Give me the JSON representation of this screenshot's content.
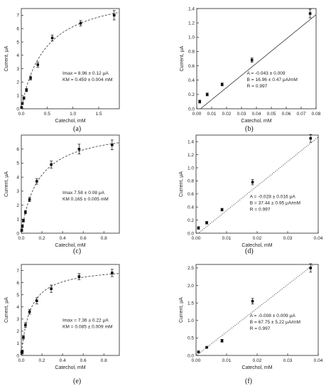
{
  "chart_data": [
    {
      "type": "scatter",
      "panel": "(a)",
      "xlabel": "Catechol, mM",
      "ylabel": "Current, μA",
      "xlim": [
        0,
        1.9
      ],
      "ylim": [
        0,
        7.5
      ],
      "xticks": [
        0,
        0.5,
        1.0,
        1.5
      ],
      "xtick_labels": [
        "0.0",
        "0.5",
        "1.0",
        "1.5"
      ],
      "yticks": [
        0,
        1,
        2,
        3,
        4,
        5,
        6,
        7
      ],
      "fit": {
        "kind": "michaelis-menten",
        "style": "dashed",
        "imax": 8.96,
        "km": 0.459
      },
      "annotation": [
        "Imax = 8.96 ± 0.12 μA",
        "KM = 0.459 ± 0.004 mM"
      ],
      "points": [
        {
          "x": 0.005,
          "y": 0.1,
          "err": 0.05
        },
        {
          "x": 0.02,
          "y": 0.4,
          "err": 0.08
        },
        {
          "x": 0.05,
          "y": 0.8,
          "err": 0.1
        },
        {
          "x": 0.1,
          "y": 1.4,
          "err": 0.12
        },
        {
          "x": 0.18,
          "y": 2.3,
          "err": 0.15
        },
        {
          "x": 0.32,
          "y": 3.3,
          "err": 0.2
        },
        {
          "x": 0.6,
          "y": 5.3,
          "err": 0.22
        },
        {
          "x": 1.15,
          "y": 6.4,
          "err": 0.2
        },
        {
          "x": 1.8,
          "y": 7.0,
          "err": 0.35
        }
      ]
    },
    {
      "type": "scatter",
      "panel": "(b)",
      "xlabel": "Catechol, mM",
      "ylabel": "Current, μA",
      "xlim": [
        0,
        0.08
      ],
      "ylim": [
        0,
        1.4
      ],
      "xticks": [
        0,
        0.01,
        0.02,
        0.03,
        0.04,
        0.05,
        0.06,
        0.07,
        0.08
      ],
      "xtick_labels": [
        "0.00",
        "0.01",
        "0.02",
        "0.03",
        "0.04",
        "0.05",
        "0.06",
        "0.07",
        "0.08"
      ],
      "yticks": [
        0,
        0.2,
        0.4,
        0.6,
        0.8,
        1.0,
        1.2,
        1.4
      ],
      "ytick_labels": [
        "0.0",
        "0.2",
        "0.4",
        "0.6",
        "0.8",
        "1.0",
        "1.2",
        "1.4"
      ],
      "fit": {
        "kind": "linear",
        "style": "solid",
        "intercept": -0.043,
        "slope": 16.96
      },
      "annotation": [
        "A = -0.043 ± 0.009",
        "B = 16.96 ± 0.47 μA/mM",
        "R = 0.997"
      ],
      "points": [
        {
          "x": 0.002,
          "y": 0.1,
          "err": 0.02
        },
        {
          "x": 0.007,
          "y": 0.2,
          "err": 0.02
        },
        {
          "x": 0.017,
          "y": 0.34,
          "err": 0.02
        },
        {
          "x": 0.037,
          "y": 0.68,
          "err": 0.03
        },
        {
          "x": 0.076,
          "y": 1.33,
          "err": 0.06
        }
      ]
    },
    {
      "type": "scatter",
      "panel": "(c)",
      "xlabel": "Catechol, mM",
      "ylabel": "Current, μA",
      "xlim": [
        0,
        0.95
      ],
      "ylim": [
        0,
        7
      ],
      "xticks": [
        0,
        0.2,
        0.4,
        0.6,
        0.8
      ],
      "xtick_labels": [
        "0.0",
        "0.2",
        "0.4",
        "0.6",
        "0.8"
      ],
      "yticks": [
        0,
        1,
        2,
        3,
        4,
        5,
        6
      ],
      "fit": {
        "kind": "michaelis-menten",
        "style": "dashed",
        "imax": 7.58,
        "km": 0.165
      },
      "annotation": [
        "Imax 7.58 ± 0.08 μA",
        "KM 0.165 ± 0.005 mM"
      ],
      "points": [
        {
          "x": 0.004,
          "y": 0.2,
          "err": 0.08
        },
        {
          "x": 0.01,
          "y": 0.5,
          "err": 0.1
        },
        {
          "x": 0.02,
          "y": 0.9,
          "err": 0.1
        },
        {
          "x": 0.04,
          "y": 1.5,
          "err": 0.12
        },
        {
          "x": 0.08,
          "y": 2.4,
          "err": 0.15
        },
        {
          "x": 0.15,
          "y": 3.7,
          "err": 0.2
        },
        {
          "x": 0.29,
          "y": 4.9,
          "err": 0.25
        },
        {
          "x": 0.56,
          "y": 6.0,
          "err": 0.35
        },
        {
          "x": 0.88,
          "y": 6.3,
          "err": 0.35
        }
      ]
    },
    {
      "type": "scatter",
      "panel": "(d)",
      "xlabel": "Catechol, mM",
      "ylabel": "Current, μA",
      "xlim": [
        0,
        0.04
      ],
      "ylim": [
        0,
        1.5
      ],
      "xticks": [
        0,
        0.01,
        0.02,
        0.03,
        0.04
      ],
      "xtick_labels": [
        "0.00",
        "0.01",
        "0.02",
        "0.03",
        "0.04"
      ],
      "yticks": [
        0,
        0.2,
        0.4,
        0.6,
        0.8,
        1.0,
        1.2,
        1.4
      ],
      "ytick_labels": [
        "0.0",
        "0.2",
        "0.4",
        "0.6",
        "0.8",
        "1.0",
        "1.2",
        "1.4"
      ],
      "fit": {
        "kind": "linear",
        "style": "dotted",
        "intercept": -0.028,
        "slope": 37.44
      },
      "annotation": [
        "A = -0.028 ± 0.016  μA",
        "B = 37.44 ± 0.95 μA/mM",
        "R = 0.997"
      ],
      "points": [
        {
          "x": 0.0008,
          "y": 0.08,
          "err": 0.02
        },
        {
          "x": 0.0035,
          "y": 0.16,
          "err": 0.02
        },
        {
          "x": 0.0085,
          "y": 0.36,
          "err": 0.02
        },
        {
          "x": 0.0185,
          "y": 0.78,
          "err": 0.04
        },
        {
          "x": 0.0375,
          "y": 1.45,
          "err": 0.06
        }
      ]
    },
    {
      "type": "scatter",
      "panel": "(e)",
      "xlabel": "Catechol, mM",
      "ylabel": "Current, μA",
      "xlim": [
        0,
        0.95
      ],
      "ylim": [
        0,
        7.5
      ],
      "xticks": [
        0,
        0.2,
        0.4,
        0.6,
        0.8
      ],
      "xtick_labels": [
        "0.0",
        "0.2",
        "0.4",
        "0.6",
        "0.8"
      ],
      "yticks": [
        0,
        1,
        2,
        3,
        4,
        5,
        6,
        7
      ],
      "fit": {
        "kind": "michaelis-menten",
        "style": "dashed",
        "imax": 7.36,
        "km": 0.085
      },
      "annotation": [
        "Imax = 7.36 ± 0.22 μA",
        "KM = 0.085 ± 0.009 mM"
      ],
      "points": [
        {
          "x": 0.004,
          "y": 0.25,
          "err": 0.15
        },
        {
          "x": 0.01,
          "y": 0.3,
          "err": 0.15
        },
        {
          "x": 0.02,
          "y": 1.5,
          "err": 0.15
        },
        {
          "x": 0.04,
          "y": 2.5,
          "err": 0.2
        },
        {
          "x": 0.08,
          "y": 3.6,
          "err": 0.2
        },
        {
          "x": 0.15,
          "y": 4.5,
          "err": 0.25
        },
        {
          "x": 0.29,
          "y": 5.5,
          "err": 0.3
        },
        {
          "x": 0.56,
          "y": 6.5,
          "err": 0.25
        },
        {
          "x": 0.88,
          "y": 6.8,
          "err": 0.3
        }
      ]
    },
    {
      "type": "scatter",
      "panel": "(f)",
      "xlabel": "Catechol, mM",
      "ylabel": "Current, μA",
      "xlim": [
        0,
        0.04
      ],
      "ylim": [
        0,
        2.6
      ],
      "xticks": [
        0,
        0.01,
        0.02,
        0.03,
        0.04
      ],
      "xtick_labels": [
        "0.00",
        "0.01",
        "0.02",
        "0.03",
        "0.04"
      ],
      "yticks": [
        0,
        0.5,
        1.0,
        1.5,
        2.0,
        2.5
      ],
      "ytick_labels": [
        "0.0",
        "0.5",
        "1.0",
        "1.5",
        "2.0",
        "2.5"
      ],
      "fit": {
        "kind": "linear",
        "style": "dotted",
        "intercept": -0.008,
        "slope": 67.75
      },
      "annotation": [
        "A = -0.008 ± 0.009 μA",
        "B = 67.75 ± 5.22 μA/mM",
        "R = 0.997"
      ],
      "points": [
        {
          "x": 0.0008,
          "y": 0.1,
          "err": 0.03
        },
        {
          "x": 0.0035,
          "y": 0.23,
          "err": 0.03
        },
        {
          "x": 0.0085,
          "y": 0.42,
          "err": 0.04
        },
        {
          "x": 0.0185,
          "y": 1.55,
          "err": 0.08
        },
        {
          "x": 0.0375,
          "y": 2.5,
          "err": 0.12
        }
      ]
    }
  ],
  "captions": [
    "(a)",
    "(b)",
    "(c)",
    "(d)",
    "(e)",
    "(f)"
  ]
}
